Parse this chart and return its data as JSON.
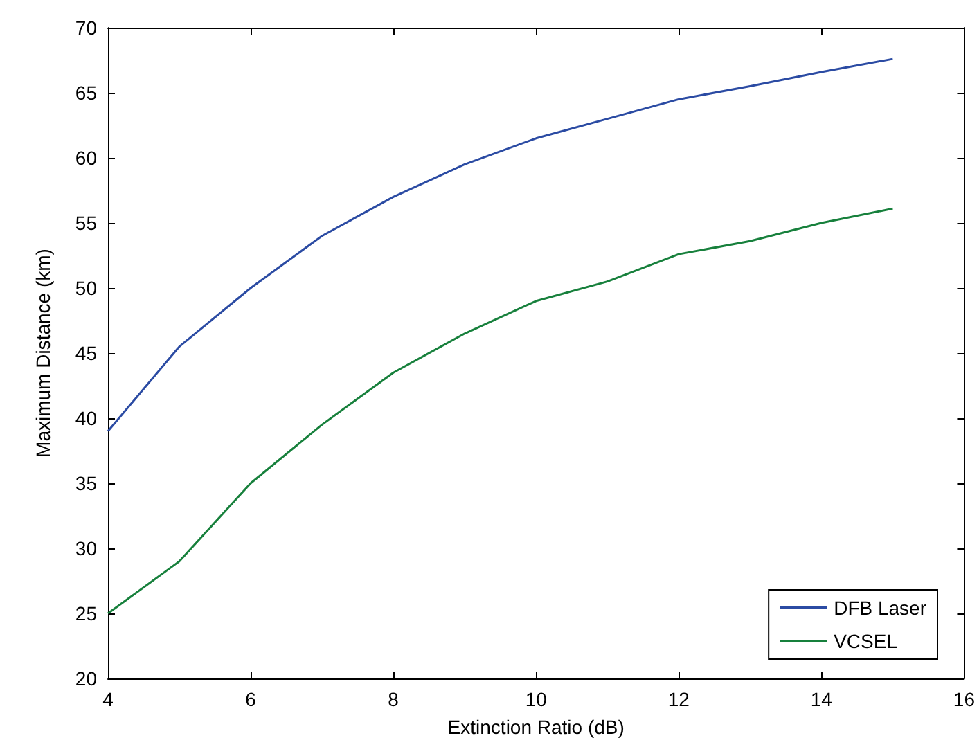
{
  "chart_data": {
    "type": "line",
    "xlabel": "Extinction Ratio (dB)",
    "ylabel": "Maximum Distance (km)",
    "x": [
      4,
      5,
      6,
      7,
      8,
      9,
      10,
      11,
      12,
      13,
      14,
      15
    ],
    "series": [
      {
        "name": "DFB Laser",
        "color": "#2b4ba3",
        "values": [
          39,
          45.5,
          50,
          54,
          57,
          59.5,
          61.5,
          63,
          64.5,
          65.5,
          66.6,
          67.6
        ]
      },
      {
        "name": "VCSEL",
        "color": "#17803c",
        "values": [
          25,
          29,
          35,
          39.5,
          43.5,
          46.5,
          49,
          50.5,
          52.6,
          53.6,
          55,
          56.1
        ]
      }
    ],
    "xlim": [
      4,
      16
    ],
    "xticks": [
      4,
      6,
      8,
      10,
      12,
      14,
      16
    ],
    "ylim": [
      20,
      70
    ],
    "yticks": [
      20,
      25,
      30,
      35,
      40,
      45,
      50,
      55,
      60,
      65,
      70
    ],
    "grid": false,
    "legend": "bottom right",
    "marker": "none",
    "line_style": "solid"
  }
}
